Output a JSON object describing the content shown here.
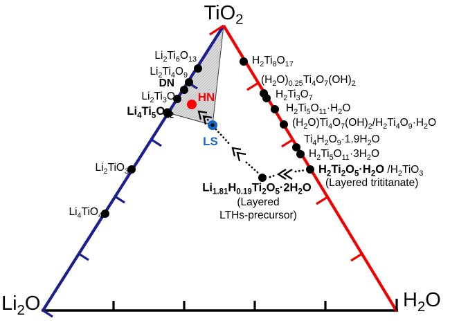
{
  "diagram_type": "ternary-phase-diagram",
  "colors": {
    "left_axis": "#1b1f8e",
    "right_axis": "#ee0101",
    "bottom_axis": "#000000",
    "shade_fill": "#dcdcdc",
    "shade_hatch": "#bdbdbd",
    "hn_color": "#fe0000",
    "ls_color": "#1566c9",
    "point_color": "#000000"
  },
  "corners": {
    "top": "TiO[2]",
    "bottom_left": "Li[2]O",
    "bottom_right": "H[2]O"
  },
  "left_edge": {
    "phases": [
      {
        "label": "Li[2]Ti[6]O[13]"
      },
      {
        "label": "Li[2]Ti[4]O[9]"
      },
      {
        "label": "DN"
      },
      {
        "label": "Li[2]Ti[3]O[7]"
      },
      {
        "label": "Li[4]Ti[5]O[12]"
      },
      {
        "label": "Li[2]TiO[3]"
      },
      {
        "label": "Li[4]TiO[4]"
      }
    ]
  },
  "right_edge": {
    "phases": [
      {
        "label": "H[2]Ti[8]O[17]"
      },
      {
        "label": "(H[2]O)[0.25]Ti[4]O[7](OH)[2]"
      },
      {
        "label": "H[2]Ti[3]O[7]"
      },
      {
        "label": "H[2]Ti[5]O[11]·H[2]O"
      },
      {
        "label": "(H[2]O)Ti[4]O[7](OH)[2]/H[2]Ti[4]O[9]·H[2]O"
      },
      {
        "label": "Ti[4]H[2]O[9]·1.9H[2]O"
      },
      {
        "label": "H[2]Ti[5]O[11]·3H[2]O"
      },
      {
        "label_bold": "H[2]Ti[2]O[5]·H[2]O",
        "label_rest": " /H[2]TiO[3]",
        "note": "(Layered trititanate)"
      }
    ]
  },
  "interior": {
    "hn_label": "HN",
    "ls_label": "LS",
    "precursor_label": "Li[1.81]H[0.19]Ti[2]O[5]·2H[2]O",
    "precursor_note_line1": "(Layered",
    "precursor_note_line2": "LTHs-precursor)"
  }
}
